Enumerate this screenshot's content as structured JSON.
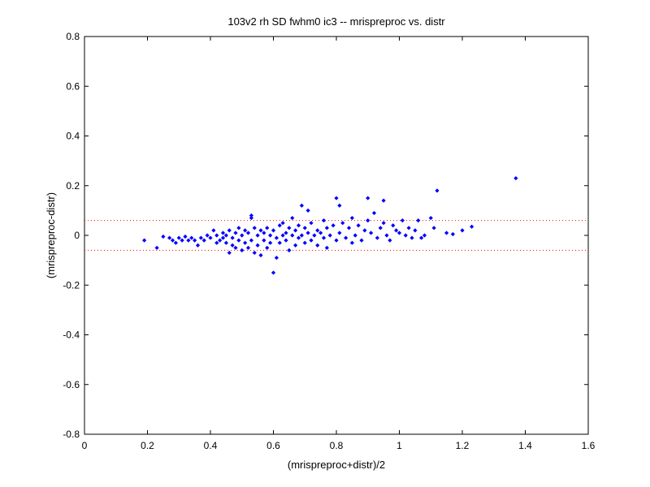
{
  "chart_data": {
    "type": "scatter",
    "title": "103v2 rh SD fwhm0 ic3 -- mrispreproc vs. distr",
    "xlabel": "(mrispreproc+distr)/2",
    "ylabel": "(mrispreproc-distr)",
    "xlim": [
      0,
      1.6
    ],
    "ylim": [
      -0.8,
      0.8
    ],
    "x_ticks": [
      "0",
      "0.2",
      "0.4",
      "0.6",
      "0.8",
      "1",
      "1.2",
      "1.4",
      "1.6"
    ],
    "y_ticks": [
      "-0.8",
      "-0.6",
      "-0.4",
      "-0.2",
      "0",
      "0.2",
      "0.4",
      "0.6",
      "0.8"
    ],
    "grid": false,
    "marker_color": "#0000ff",
    "reference_line_color": "#ff0000",
    "reference_lines_y": [
      0.06,
      -0.06
    ],
    "series": [
      {
        "points": [
          [
            0.19,
            -0.02
          ],
          [
            0.23,
            -0.05
          ],
          [
            0.25,
            -0.005
          ],
          [
            0.27,
            -0.01
          ],
          [
            0.28,
            -0.02
          ],
          [
            0.29,
            -0.03
          ],
          [
            0.3,
            -0.01
          ],
          [
            0.31,
            -0.02
          ],
          [
            0.32,
            -0.005
          ],
          [
            0.33,
            -0.02
          ],
          [
            0.34,
            -0.01
          ],
          [
            0.35,
            -0.02
          ],
          [
            0.36,
            -0.04
          ],
          [
            0.37,
            -0.01
          ],
          [
            0.38,
            -0.02
          ],
          [
            0.39,
            0.0
          ],
          [
            0.4,
            -0.01
          ],
          [
            0.41,
            0.02
          ],
          [
            0.42,
            -0.03
          ],
          [
            0.42,
            0.0
          ],
          [
            0.43,
            -0.02
          ],
          [
            0.44,
            -0.01
          ],
          [
            0.44,
            0.01
          ],
          [
            0.45,
            -0.03
          ],
          [
            0.45,
            0.0
          ],
          [
            0.46,
            -0.07
          ],
          [
            0.46,
            0.02
          ],
          [
            0.47,
            -0.04
          ],
          [
            0.47,
            -0.01
          ],
          [
            0.48,
            -0.05
          ],
          [
            0.48,
            0.01
          ],
          [
            0.49,
            -0.02
          ],
          [
            0.49,
            0.03
          ],
          [
            0.5,
            -0.06
          ],
          [
            0.5,
            0.0
          ],
          [
            0.51,
            -0.03
          ],
          [
            0.51,
            0.02
          ],
          [
            0.52,
            -0.05
          ],
          [
            0.52,
            0.01
          ],
          [
            0.53,
            0.08
          ],
          [
            0.53,
            0.07
          ],
          [
            0.53,
            -0.02
          ],
          [
            0.54,
            -0.07
          ],
          [
            0.54,
            0.03
          ],
          [
            0.55,
            -0.04
          ],
          [
            0.55,
            0.0
          ],
          [
            0.56,
            -0.08
          ],
          [
            0.56,
            0.02
          ],
          [
            0.57,
            -0.02
          ],
          [
            0.57,
            0.01
          ],
          [
            0.58,
            -0.05
          ],
          [
            0.58,
            0.03
          ],
          [
            0.59,
            -0.03
          ],
          [
            0.59,
            0.0
          ],
          [
            0.6,
            -0.15
          ],
          [
            0.6,
            0.02
          ],
          [
            0.61,
            -0.09
          ],
          [
            0.61,
            -0.01
          ],
          [
            0.62,
            0.04
          ],
          [
            0.62,
            -0.03
          ],
          [
            0.63,
            0.0
          ],
          [
            0.63,
            0.05
          ],
          [
            0.64,
            -0.02
          ],
          [
            0.64,
            0.01
          ],
          [
            0.65,
            -0.06
          ],
          [
            0.65,
            0.03
          ],
          [
            0.66,
            0.0
          ],
          [
            0.66,
            0.07
          ],
          [
            0.67,
            -0.04
          ],
          [
            0.67,
            0.02
          ],
          [
            0.68,
            0.04
          ],
          [
            0.68,
            -0.01
          ],
          [
            0.69,
            0.12
          ],
          [
            0.69,
            0.0
          ],
          [
            0.7,
            0.03
          ],
          [
            0.7,
            -0.03
          ],
          [
            0.71,
            0.1
          ],
          [
            0.71,
            0.01
          ],
          [
            0.72,
            -0.02
          ],
          [
            0.72,
            0.05
          ],
          [
            0.73,
            0.0
          ],
          [
            0.74,
            0.02
          ],
          [
            0.74,
            -0.04
          ],
          [
            0.75,
            0.01
          ],
          [
            0.76,
            0.06
          ],
          [
            0.76,
            -0.01
          ],
          [
            0.77,
            0.03
          ],
          [
            0.77,
            -0.05
          ],
          [
            0.78,
            0.0
          ],
          [
            0.79,
            0.04
          ],
          [
            0.8,
            0.15
          ],
          [
            0.8,
            -0.02
          ],
          [
            0.81,
            0.12
          ],
          [
            0.81,
            0.01
          ],
          [
            0.82,
            0.05
          ],
          [
            0.83,
            -0.01
          ],
          [
            0.84,
            0.03
          ],
          [
            0.85,
            0.07
          ],
          [
            0.85,
            -0.03
          ],
          [
            0.86,
            0.0
          ],
          [
            0.87,
            0.04
          ],
          [
            0.88,
            -0.02
          ],
          [
            0.89,
            0.02
          ],
          [
            0.9,
            0.15
          ],
          [
            0.9,
            0.06
          ],
          [
            0.91,
            0.01
          ],
          [
            0.92,
            0.09
          ],
          [
            0.93,
            -0.01
          ],
          [
            0.94,
            0.03
          ],
          [
            0.95,
            0.14
          ],
          [
            0.95,
            0.05
          ],
          [
            0.96,
            0.0
          ],
          [
            0.97,
            -0.02
          ],
          [
            0.98,
            0.04
          ],
          [
            0.99,
            0.02
          ],
          [
            1.0,
            0.01
          ],
          [
            1.01,
            0.06
          ],
          [
            1.02,
            0.0
          ],
          [
            1.03,
            0.03
          ],
          [
            1.04,
            -0.01
          ],
          [
            1.05,
            0.02
          ],
          [
            1.06,
            0.06
          ],
          [
            1.07,
            -0.01
          ],
          [
            1.08,
            0.0
          ],
          [
            1.1,
            0.07
          ],
          [
            1.11,
            0.03
          ],
          [
            1.12,
            0.18
          ],
          [
            1.15,
            0.01
          ],
          [
            1.17,
            0.005
          ],
          [
            1.2,
            0.02
          ],
          [
            1.23,
            0.035
          ],
          [
            1.37,
            0.23
          ]
        ]
      }
    ]
  }
}
